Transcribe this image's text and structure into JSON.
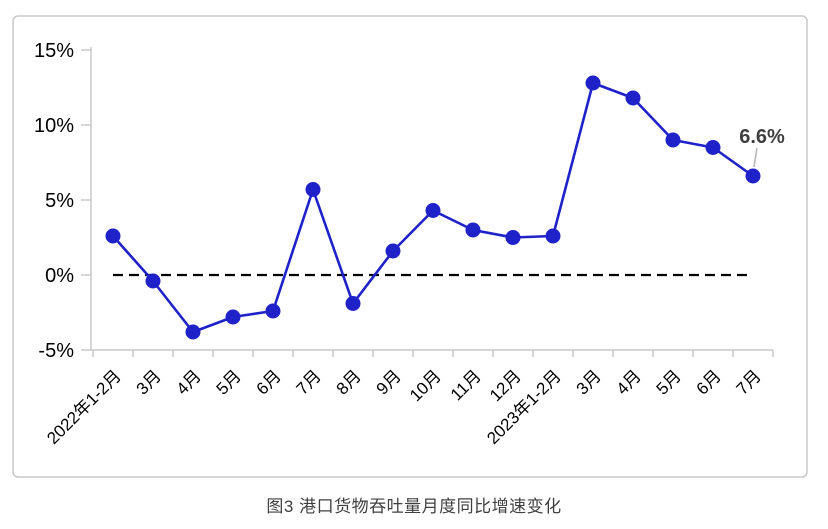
{
  "chart_data": {
    "type": "line",
    "title": "图3 港口货物吞吐量月度同比增速变化",
    "categories": [
      "2022年1-2月",
      "3月",
      "4月",
      "5月",
      "6月",
      "7月",
      "8月",
      "9月",
      "10月",
      "11月",
      "12月",
      "2023年1-2月",
      "3月",
      "4月",
      "5月",
      "6月",
      "7月"
    ],
    "values": [
      2.6,
      -0.4,
      -3.8,
      -2.8,
      -2.4,
      5.7,
      -1.9,
      1.6,
      4.3,
      3.0,
      2.5,
      2.6,
      12.8,
      11.8,
      9.0,
      8.5,
      6.6
    ],
    "unit": "%",
    "y_tick_labels": [
      "15%",
      "10%",
      "5%",
      "0%",
      "-5%"
    ],
    "y_tick_values": [
      15,
      10,
      5,
      0,
      -5
    ],
    "ylim": [
      -5,
      15
    ],
    "x_label_rotation": 45,
    "grid": false,
    "legend": "none",
    "zero_reference_line": "dashed",
    "annotation": {
      "text": "6.6%",
      "category": "7月",
      "index": 16
    },
    "colors": {
      "line": "#1F22C8",
      "marker": "#1F22C8",
      "zero_line": "#000000",
      "axis": "#C8C8C8",
      "frame_border": "#C8C8C8",
      "tick_label_text": "#000000",
      "annotation_text": "#3F3F3F",
      "leader_line": "#B8B8B8",
      "caption_text": "#404040",
      "background": "#FFFFFF"
    }
  }
}
